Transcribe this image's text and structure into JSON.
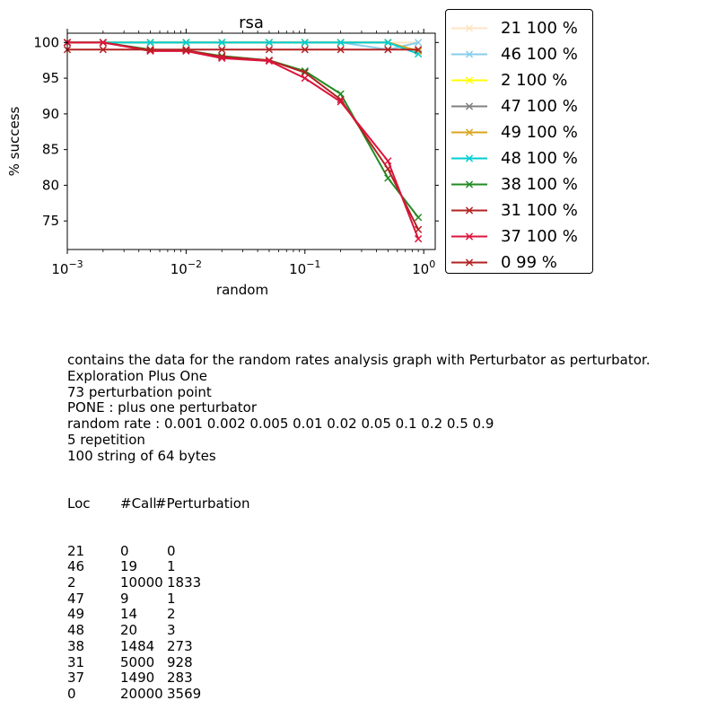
{
  "chart_data": {
    "type": "line",
    "title": "rsa",
    "xlabel": "random",
    "ylabel": "% success",
    "xscale": "log",
    "xlim": [
      0.001,
      1.25
    ],
    "ylim": [
      71,
      101.3
    ],
    "x_ticks": [
      0.001,
      0.01,
      0.1,
      1
    ],
    "x_tick_labels": [
      {
        "base": "10",
        "exp": "−3"
      },
      {
        "base": "10",
        "exp": "−2"
      },
      {
        "base": "10",
        "exp": "−1"
      },
      {
        "base": "10",
        "exp": "0"
      }
    ],
    "y_ticks": [
      75,
      80,
      85,
      90,
      95,
      100
    ],
    "y_tick_labels": [
      "75",
      "80",
      "85",
      "90",
      "95",
      "100"
    ],
    "x": [
      0.001,
      0.002,
      0.005,
      0.01,
      0.02,
      0.05,
      0.1,
      0.2,
      0.5,
      0.9
    ],
    "legend_position": "outside-right",
    "series": [
      {
        "name": "21 100 %",
        "color": "#ffe4c4",
        "values": [
          100,
          100,
          100,
          100,
          100,
          100,
          100,
          100,
          100,
          100
        ]
      },
      {
        "name": "46 100 %",
        "color": "#87ceeb",
        "values": [
          100,
          100,
          100,
          100,
          100,
          100,
          100,
          100,
          99,
          100
        ]
      },
      {
        "name": "2 100 %",
        "color": "#ffff00",
        "values": [
          100,
          100,
          100,
          100,
          100,
          100,
          100,
          100,
          100,
          98.8
        ]
      },
      {
        "name": "47 100 %",
        "color": "#808080",
        "values": [
          100,
          100,
          100,
          100,
          100,
          100,
          100,
          100,
          100,
          98.8
        ]
      },
      {
        "name": "49 100 %",
        "color": "#daa520",
        "values": [
          100,
          100,
          100,
          100,
          100,
          100,
          100,
          100,
          100,
          98.8
        ]
      },
      {
        "name": "48 100 %",
        "color": "#00ced1",
        "values": [
          100,
          100,
          100,
          100,
          100,
          100,
          100,
          100,
          100,
          98.4
        ]
      },
      {
        "name": "38 100 %",
        "color": "#228b22",
        "values": [
          100,
          100,
          99,
          98.9,
          98.1,
          97.5,
          96,
          92.8,
          81,
          75.5
        ]
      },
      {
        "name": "31 100 %",
        "color": "#b22222",
        "values": [
          100,
          100,
          98.9,
          98.9,
          98,
          97.5,
          95.8,
          92,
          82.3,
          73.8
        ]
      },
      {
        "name": "37 100 %",
        "color": "#dc143c",
        "values": [
          100,
          100,
          98.8,
          98.8,
          97.8,
          97.4,
          95,
          91.7,
          83.4,
          72.5
        ]
      },
      {
        "name": "0 99 %",
        "color": "#b22222",
        "values": [
          99,
          99,
          99,
          99,
          99,
          99,
          99,
          99,
          99,
          99
        ]
      }
    ]
  },
  "info": {
    "lines": [
      "contains the data for the random rates analysis graph with Perturbator as perturbator.",
      "Exploration Plus One",
      "73 perturbation point",
      "PONE : plus one perturbator",
      "random rate : 0.001 0.002 0.005 0.01 0.02 0.05 0.1 0.2 0.5 0.9",
      "5 repetition",
      "100 string of 64 bytes"
    ],
    "table_header": [
      "Loc",
      "#Call",
      "#Perturbation"
    ],
    "table_rows": [
      [
        "21",
        "0",
        "0"
      ],
      [
        "46",
        "19",
        "1"
      ],
      [
        "2",
        "10000",
        "1833"
      ],
      [
        "47",
        "9",
        "1"
      ],
      [
        "49",
        "14",
        "2"
      ],
      [
        "48",
        "20",
        "3"
      ],
      [
        "38",
        "1484",
        "273"
      ],
      [
        "31",
        "5000",
        "928"
      ],
      [
        "37",
        "1490",
        "283"
      ],
      [
        "0",
        "20000",
        "3569"
      ]
    ]
  }
}
